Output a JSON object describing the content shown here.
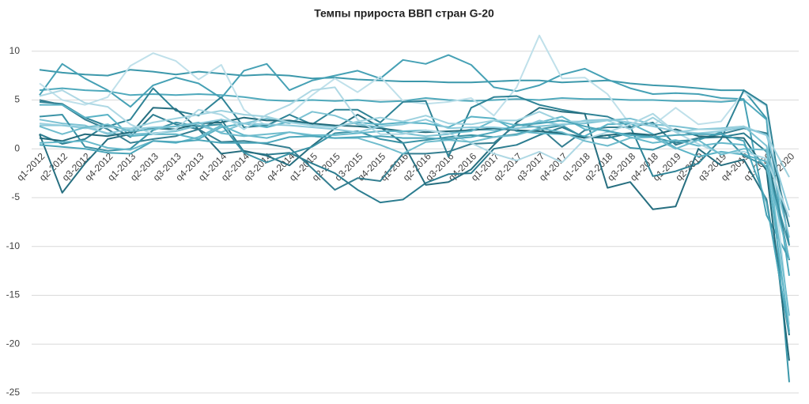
{
  "chart_data": {
    "type": "line",
    "title": "Темпы прироста ВВП стран G-20",
    "categories": [
      "q1-2012",
      "q2-2012",
      "q3-2012",
      "q4-2012",
      "q1-2013",
      "q2-2013",
      "q3-2013",
      "q4-2013",
      "q1-2014",
      "q2-2014",
      "q3-2014",
      "q4-2014",
      "q1-2015",
      "q2-2015",
      "q3-2015",
      "q4-2015",
      "q1-2016",
      "q2-2016",
      "q3-2016",
      "q4-2016",
      "q1-2017",
      "q2-2017",
      "q3-2017",
      "q4-2017",
      "q1-2018",
      "q2-2018",
      "q3-2018",
      "q4-2018",
      "q1-2019",
      "q2-2019",
      "q3-2019",
      "q4-2019",
      "q1-2020",
      "q2-2020"
    ],
    "ylim": [
      -25,
      12
    ],
    "yticks": [
      -25,
      -20,
      -15,
      -10,
      -5,
      0,
      5,
      10
    ],
    "grid": true,
    "series": [
      {
        "color": "#3c98ab",
        "values": [
          8.1,
          7.8,
          7.6,
          7.5,
          8.1,
          7.9,
          7.6,
          7.9,
          7.7,
          7.5,
          7.6,
          7.5,
          7.2,
          7.3,
          7.1,
          7.0,
          6.9,
          6.9,
          6.8,
          6.8,
          6.9,
          7.0,
          7.0,
          6.8,
          6.9,
          7.0,
          6.7,
          6.5,
          6.4,
          6.2,
          6.0,
          6.0,
          3.1,
          -23.9
        ]
      },
      {
        "color": "#4fa9bc",
        "values": [
          6.0,
          6.2,
          6.0,
          5.9,
          5.5,
          5.6,
          5.5,
          5.6,
          5.5,
          5.3,
          5.0,
          4.9,
          5.0,
          4.9,
          5.0,
          4.8,
          4.9,
          5.2,
          5.0,
          4.9,
          5.0,
          5.1,
          5.0,
          5.2,
          5.1,
          5.1,
          5.0,
          5.0,
          4.9,
          4.9,
          4.8,
          5.0,
          3.0,
          -13.0
        ]
      },
      {
        "color": "#46a1b5",
        "values": [
          5.5,
          8.7,
          7.2,
          6.0,
          4.3,
          6.5,
          7.3,
          6.7,
          5.2,
          8.0,
          8.7,
          6.0,
          7.0,
          7.5,
          8.0,
          7.2,
          9.1,
          8.7,
          9.6,
          8.6,
          6.3,
          5.9,
          6.5,
          7.6,
          8.2,
          7.1,
          6.2,
          5.6,
          5.7,
          5.6,
          5.2,
          5.1,
          -6.8,
          -11.3
        ]
      },
      {
        "color": "#bfe0ea",
        "values": [
          6.7,
          5.0,
          4.5,
          5.3,
          8.5,
          9.8,
          9.0,
          7.1,
          8.6,
          4.0,
          2.3,
          3.5,
          5.5,
          7.2,
          5.8,
          7.4,
          4.9,
          4.6,
          4.8,
          5.2,
          3.4,
          6.3,
          11.6,
          7.2,
          7.3,
          5.6,
          2.5,
          2.4,
          4.2,
          2.5,
          2.8,
          5.8,
          4.4,
          -18.0
        ]
      },
      {
        "color": "#2f8396",
        "values": [
          4.8,
          4.6,
          3.2,
          2.3,
          3.0,
          6.2,
          3.9,
          3.4,
          5.3,
          2.2,
          2.4,
          3.5,
          2.5,
          4.0,
          4.0,
          2.7,
          4.8,
          4.9,
          -0.8,
          4.2,
          5.3,
          5.4,
          4.5,
          4.0,
          3.6,
          3.3,
          2.3,
          -2.8,
          -2.3,
          -1.5,
          1.0,
          6.0,
          4.5,
          -9.9
        ]
      },
      {
        "color": "#2c7d90",
        "values": [
          1.5,
          0.5,
          1.0,
          2.5,
          1.2,
          3.5,
          2.5,
          2.0,
          3.0,
          -0.3,
          -0.6,
          -0.4,
          -1.5,
          -2.5,
          -4.2,
          -5.5,
          -5.2,
          -3.5,
          -2.6,
          -2.5,
          0.0,
          0.4,
          1.4,
          2.2,
          1.2,
          1.1,
          1.6,
          1.2,
          0.6,
          1.1,
          1.2,
          1.6,
          -0.3,
          -11.4
        ]
      },
      {
        "color": "#276f80",
        "values": [
          1.5,
          -4.5,
          -1.5,
          1.0,
          1.5,
          4.2,
          4.1,
          2.0,
          -0.5,
          -0.2,
          -0.7,
          -1.7,
          0.3,
          2.1,
          3.5,
          2.2,
          0.6,
          -3.7,
          -3.4,
          -2.1,
          0.4,
          2.7,
          4.2,
          3.8,
          3.6,
          -4.0,
          -3.4,
          -6.2,
          -5.9,
          0.0,
          -1.7,
          -1.1,
          -5.2,
          -19.1
        ]
      },
      {
        "color": "#357f91",
        "values": [
          5.0,
          4.5,
          3.0,
          2.0,
          0.6,
          1.0,
          1.3,
          2.0,
          0.7,
          0.8,
          0.5,
          0.1,
          -2.0,
          -4.2,
          -3.0,
          -3.3,
          -0.5,
          -0.5,
          -0.3,
          0.5,
          0.6,
          2.5,
          2.2,
          0.2,
          1.9,
          2.2,
          2.2,
          2.7,
          0.4,
          1.1,
          1.5,
          2.1,
          1.6,
          -8.0
        ]
      },
      {
        "color": "#5ab3c6",
        "values": [
          4.5,
          4.5,
          3.2,
          3.5,
          1.3,
          1.5,
          1.5,
          1.0,
          2.2,
          2.6,
          2.2,
          2.8,
          2.4,
          2.3,
          2.7,
          2.5,
          2.7,
          2.6,
          2.2,
          3.3,
          3.1,
          1.8,
          1.6,
          1.5,
          1.3,
          2.5,
          2.6,
          1.5,
          0.1,
          -0.8,
          -0.3,
          -0.6,
          -1.3,
          -18.7
        ]
      },
      {
        "color": "#7cc2d3",
        "values": [
          3.0,
          2.6,
          2.4,
          1.5,
          1.5,
          1.6,
          1.8,
          2.4,
          1.7,
          2.6,
          3.1,
          2.6,
          3.8,
          3.4,
          2.5,
          2.2,
          1.6,
          1.3,
          1.5,
          2.0,
          1.9,
          2.1,
          2.3,
          2.5,
          2.6,
          2.9,
          3.1,
          2.5,
          2.3,
          2.0,
          2.1,
          2.3,
          0.3,
          -9.1
        ]
      },
      {
        "color": "#3b93a6",
        "values": [
          3.3,
          3.5,
          0.2,
          -0.2,
          0.0,
          1.9,
          2.7,
          2.3,
          2.5,
          -0.4,
          -1.4,
          -0.5,
          0.2,
          1.6,
          1.8,
          1.0,
          0.6,
          0.9,
          1.2,
          1.4,
          1.2,
          1.5,
          2.0,
          2.4,
          1.1,
          1.4,
          0.1,
          -0.1,
          0.8,
          0.9,
          1.7,
          -0.7,
          -1.8,
          -9.9
        ]
      },
      {
        "color": "#226a7a",
        "values": [
          1.1,
          0.8,
          1.5,
          1.3,
          1.7,
          2.1,
          2.0,
          2.6,
          2.7,
          3.2,
          2.9,
          2.9,
          2.6,
          2.4,
          2.3,
          2.1,
          1.8,
          1.7,
          1.8,
          1.9,
          2.1,
          1.9,
          1.8,
          1.6,
          1.1,
          1.4,
          1.6,
          1.4,
          2.0,
          1.3,
          1.2,
          1.1,
          -2.2,
          -21.7
        ]
      },
      {
        "color": "#66b9cb",
        "values": [
          0.6,
          0.7,
          0.8,
          0.1,
          -0.1,
          0.8,
          0.6,
          1.2,
          2.4,
          1.4,
          1.1,
          1.7,
          1.4,
          1.4,
          1.6,
          1.8,
          1.8,
          1.9,
          1.6,
          1.8,
          2.9,
          2.4,
          2.7,
          3.3,
          2.0,
          1.9,
          1.2,
          0.6,
          0.9,
          0.3,
          0.6,
          0.4,
          -1.9,
          -11.3
        ]
      },
      {
        "color": "#9ed2df",
        "values": [
          2.6,
          2.4,
          2.1,
          2.2,
          2.1,
          2.7,
          3.1,
          3.5,
          3.9,
          3.5,
          3.3,
          2.7,
          2.4,
          2.2,
          2.8,
          3.2,
          2.8,
          3.4,
          2.6,
          2.5,
          2.9,
          2.9,
          3.8,
          2.8,
          2.8,
          2.9,
          2.0,
          3.2,
          1.7,
          2.0,
          2.0,
          2.3,
          1.4,
          -2.9
        ]
      },
      {
        "color": "#8ccadb",
        "values": [
          2.4,
          2.4,
          2.2,
          1.6,
          2.0,
          2.2,
          2.3,
          2.6,
          3.0,
          2.6,
          2.5,
          2.4,
          2.2,
          2.0,
          1.7,
          2.3,
          2.5,
          3.0,
          2.1,
          2.2,
          2.2,
          2.0,
          2.9,
          2.4,
          2.9,
          3.0,
          2.7,
          2.3,
          1.8,
          1.6,
          1.8,
          2.2,
          1.4,
          -6.3
        ]
      },
      {
        "color": "#aed8e4",
        "values": [
          5.4,
          6.0,
          4.7,
          4.3,
          2.5,
          1.5,
          2.0,
          4.0,
          3.5,
          2.0,
          3.5,
          4.5,
          6.0,
          6.3,
          3.0,
          1.5,
          1.5,
          1.9,
          1.6,
          0.6,
          -0.5,
          -1.2,
          -0.3,
          -1.4,
          1.0,
          1.7,
          2.5,
          3.6,
          1.7,
          0.5,
          -0.5,
          -0.3,
          -1.0,
          -7.0
        ]
      },
      {
        "color": "#6fbccd",
        "values": [
          2.3,
          1.5,
          2.2,
          2.5,
          1.8,
          2.0,
          2.3,
          2.7,
          1.6,
          1.3,
          1.5,
          1.7,
          1.3,
          1.1,
          1.1,
          0.4,
          -0.5,
          0.7,
          0.9,
          0.7,
          1.2,
          1.4,
          2.1,
          1.7,
          0.8,
          0.3,
          1.1,
          1.2,
          0.0,
          0.9,
          -0.6,
          0.0,
          -0.1,
          -17.1
        ]
      },
      {
        "color": "#4ba6ba",
        "values": [
          0.4,
          0.2,
          0.0,
          -0.4,
          -0.5,
          0.8,
          0.7,
          0.9,
          0.6,
          0.6,
          0.6,
          1.2,
          1.3,
          1.1,
          1.2,
          1.3,
          1.1,
          1.1,
          1.0,
          1.2,
          1.7,
          2.4,
          2.6,
          2.9,
          2.3,
          1.8,
          1.4,
          1.2,
          1.4,
          1.5,
          1.5,
          0.8,
          -5.5,
          -18.9
        ]
      }
    ]
  }
}
